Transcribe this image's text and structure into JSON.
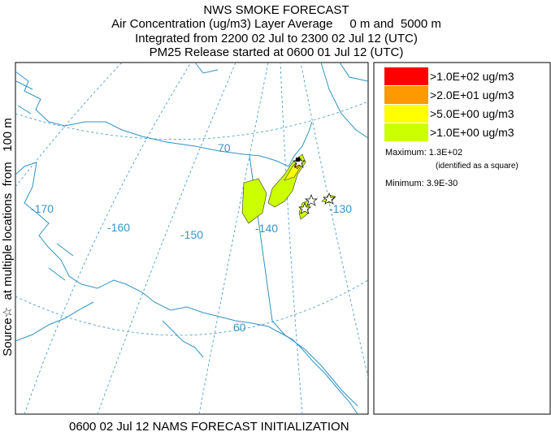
{
  "header": {
    "title": "NWS SMOKE FORECAST",
    "lines": [
      "Air Concentration (ug/m3) Layer Average     0 m and  5000 m",
      "Integrated from 2200 02 Jul to 2300 02 Jul 12 (UTC)",
      "PM25 Release started at 0600 01 Jul 12 (UTC)"
    ]
  },
  "side_label": "Source☆  at multiple locations  from   100 m",
  "map": {
    "labels": [
      "-170",
      "-160",
      "-150",
      "-140",
      "-130",
      "70",
      "60"
    ]
  },
  "legend": {
    "entries": [
      ">1.0E+02 ug/m3",
      ">2.0E+01 ug/m3",
      ">5.0E+00 ug/m3",
      ">1.0E+00 ug/m3"
    ],
    "colors": [
      "#ff0000",
      "#ff9900",
      "#ffff00",
      "#ccff00"
    ],
    "maximum": "Maximum: 1.3E+02",
    "maximum_note": "(identified as a square)",
    "minimum": "Minimum: 3.9E-30"
  },
  "footer": "0600 02 Jul 12 NAMS FORECAST INITIALIZATION"
}
